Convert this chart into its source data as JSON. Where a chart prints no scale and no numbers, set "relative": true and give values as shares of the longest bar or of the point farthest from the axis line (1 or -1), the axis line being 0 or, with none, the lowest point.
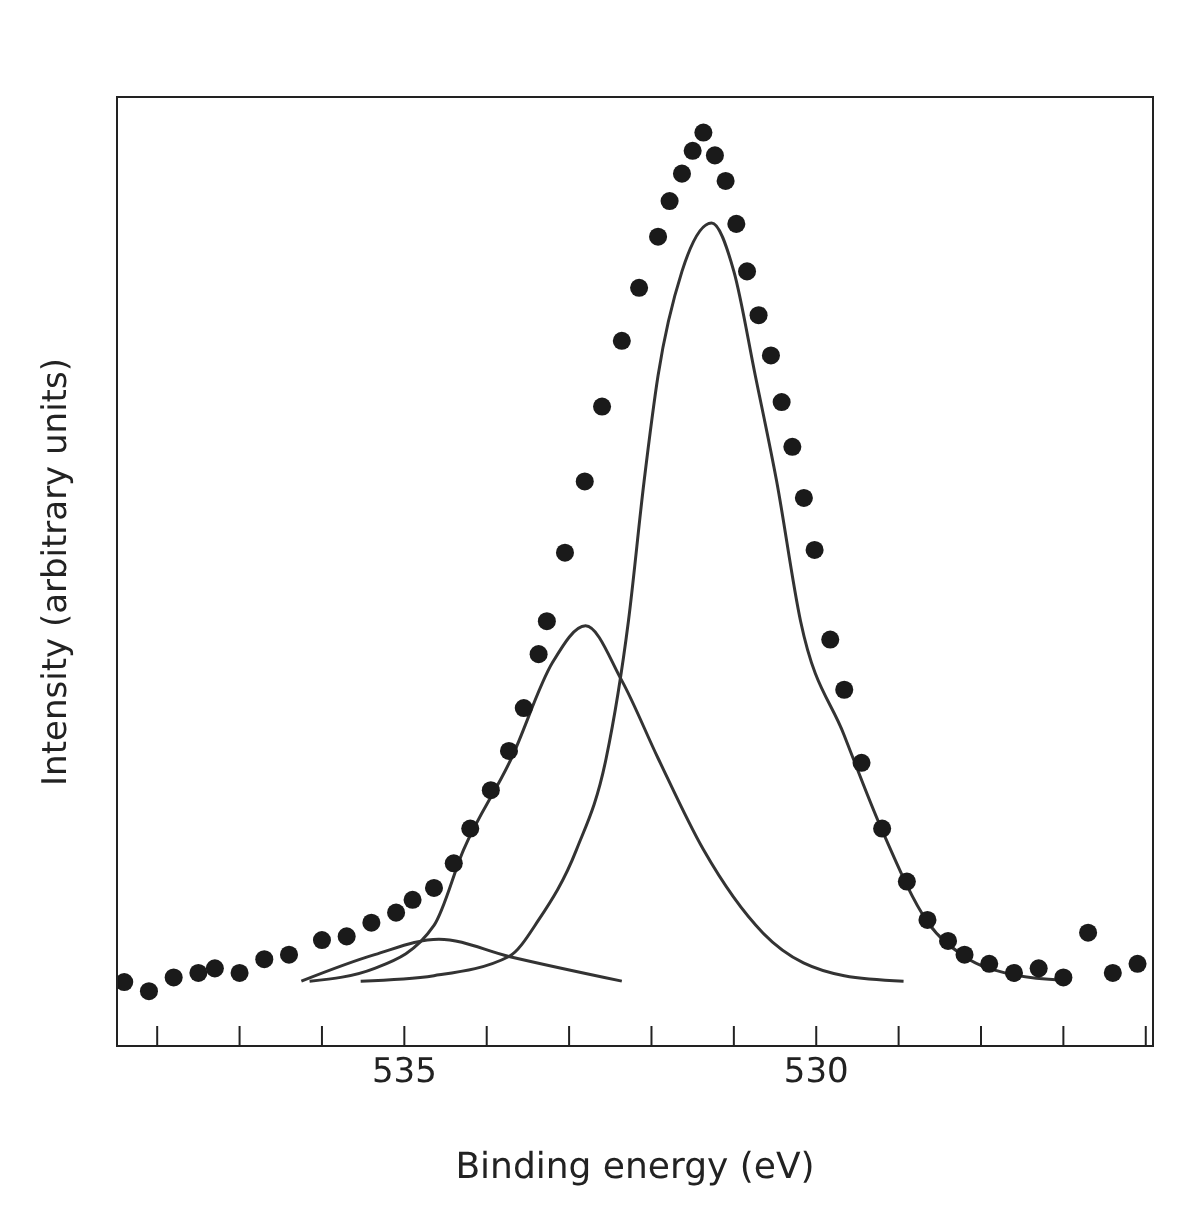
{
  "chart_data": {
    "type": "line",
    "relative": true,
    "xlabel": "Binding energy (eV)",
    "ylabel": "Intensity (arbitrary units)",
    "xlim": [
      538.5,
      525.9
    ],
    "xticks": [
      {
        "value": 538,
        "label": null
      },
      {
        "value": 537,
        "label": null
      },
      {
        "value": 536,
        "label": null
      },
      535,
      {
        "value": 534,
        "label": null
      },
      {
        "value": 533,
        "label": null
      },
      {
        "value": 532,
        "label": null
      },
      {
        "value": 531,
        "label": null
      },
      530,
      {
        "value": 529,
        "label": null
      },
      {
        "value": 528,
        "label": null
      },
      {
        "value": 527,
        "label": null
      },
      {
        "value": 526,
        "label": null
      }
    ],
    "series": [
      {
        "type": "scatter",
        "marker": "circle",
        "color": "#1a1a1a",
        "x": [
          538.4,
          538.1,
          537.8,
          537.5,
          537.3,
          537.0,
          536.7,
          536.4,
          536.0,
          535.7,
          535.4,
          535.1,
          534.9,
          534.64,
          534.4,
          534.2,
          533.95,
          533.73,
          533.55,
          533.37,
          533.27,
          533.05,
          532.81,
          532.6,
          532.36,
          532.15,
          531.92,
          531.78,
          531.63,
          531.5,
          531.37,
          531.23,
          531.1,
          530.97,
          530.84,
          530.7,
          530.55,
          530.42,
          530.29,
          530.15,
          530.02,
          529.83,
          529.66,
          529.45,
          529.2,
          528.9,
          528.65,
          528.4,
          528.2,
          527.9,
          527.6,
          527.3,
          527.0,
          526.7,
          526.4,
          526.1
        ],
        "values": [
          0.07,
          0.06,
          0.075,
          0.08,
          0.085,
          0.08,
          0.095,
          0.1,
          0.116,
          0.12,
          0.135,
          0.146,
          0.16,
          0.173,
          0.2,
          0.238,
          0.28,
          0.323,
          0.37,
          0.429,
          0.465,
          0.54,
          0.618,
          0.7,
          0.772,
          0.83,
          0.886,
          0.925,
          0.955,
          0.98,
          1.0,
          0.975,
          0.947,
          0.9,
          0.848,
          0.8,
          0.756,
          0.705,
          0.656,
          0.6,
          0.543,
          0.445,
          0.39,
          0.31,
          0.238,
          0.18,
          0.138,
          0.115,
          0.1,
          0.09,
          0.08,
          0.085,
          0.075,
          0.124,
          0.08,
          0.09
        ]
      },
      {
        "marker": "none",
        "color": "#333333",
        "x": [
          535.53,
          534.64,
          533.73,
          533.37,
          532.91,
          532.55,
          532.28,
          532.09,
          531.92,
          531.63,
          531.27,
          531.0,
          530.74,
          530.48,
          530.19,
          529.66,
          529.2,
          528.65,
          528.2,
          527.6,
          527.0
        ],
        "values": [
          0.071,
          0.077,
          0.098,
          0.138,
          0.215,
          0.315,
          0.465,
          0.618,
          0.734,
          0.848,
          0.901,
          0.848,
          0.734,
          0.618,
          0.465,
          0.34,
          0.236,
          0.136,
          0.098,
          0.078,
          0.072
        ]
      },
      {
        "marker": "none",
        "color": "#333333",
        "x": [
          536.15,
          535.36,
          534.64,
          534.28,
          533.7,
          533.2,
          532.8,
          532.36,
          531.92,
          531.37,
          530.65,
          529.66,
          528.94
        ],
        "values": [
          0.071,
          0.085,
          0.132,
          0.215,
          0.315,
          0.42,
          0.46,
          0.4,
          0.315,
          0.215,
          0.124,
          0.077,
          0.071
        ]
      },
      {
        "marker": "none",
        "color": "#333333",
        "x": [
          536.25,
          535.36,
          534.58,
          533.73,
          532.36
        ],
        "values": [
          0.071,
          0.1,
          0.117,
          0.098,
          0.071
        ]
      }
    ]
  }
}
